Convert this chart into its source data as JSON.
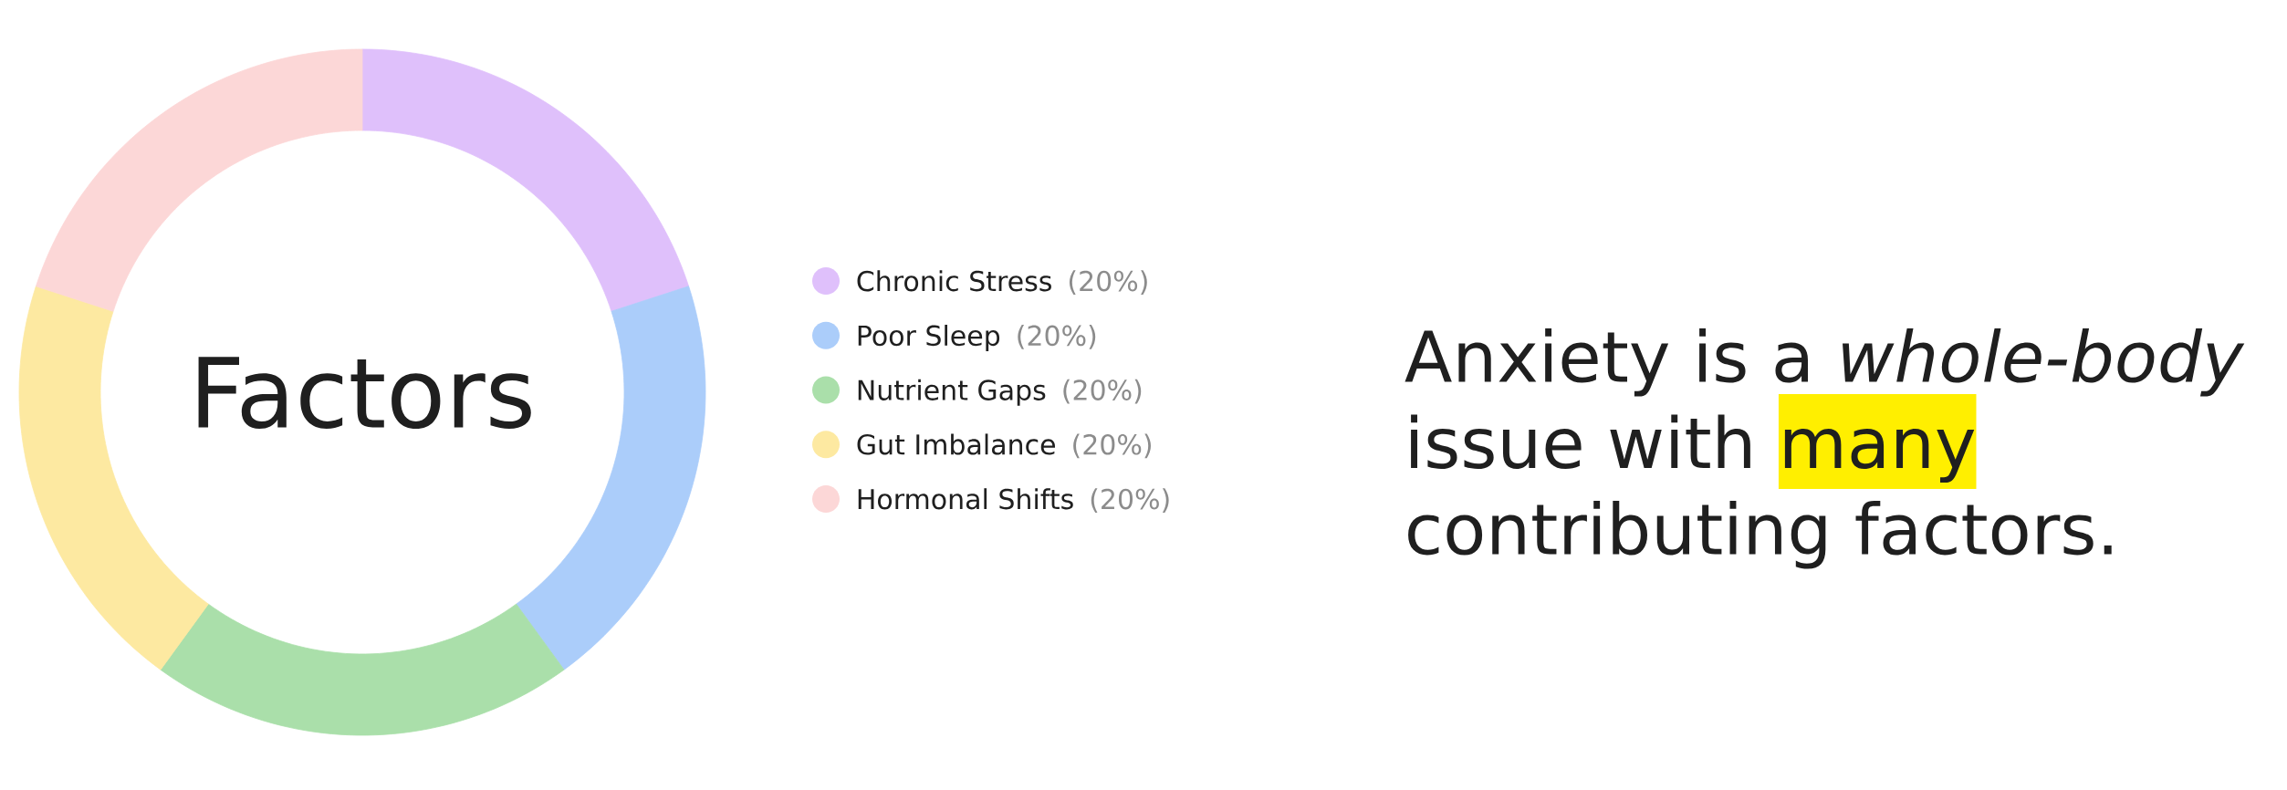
{
  "chart_data": {
    "type": "donut",
    "title": "Factors",
    "categories": [
      "Chronic Stress",
      "Poor Sleep",
      "Nutrient Gaps",
      "Gut Imbalance",
      "Hormonal Shifts"
    ],
    "values": [
      20,
      20,
      20,
      20,
      20
    ],
    "colors": [
      "#dfc0fb",
      "#abcdfa",
      "#aadfaa",
      "#fde9a1",
      "#fcd7d7"
    ],
    "value_labels": [
      "(20%)",
      "(20%)",
      "(20%)",
      "(20%)",
      "(20%)"
    ],
    "legend": "right",
    "annotations": [
      "Anxiety is a *whole-body* issue with",
      "many",
      "contributing factors."
    ]
  }
}
